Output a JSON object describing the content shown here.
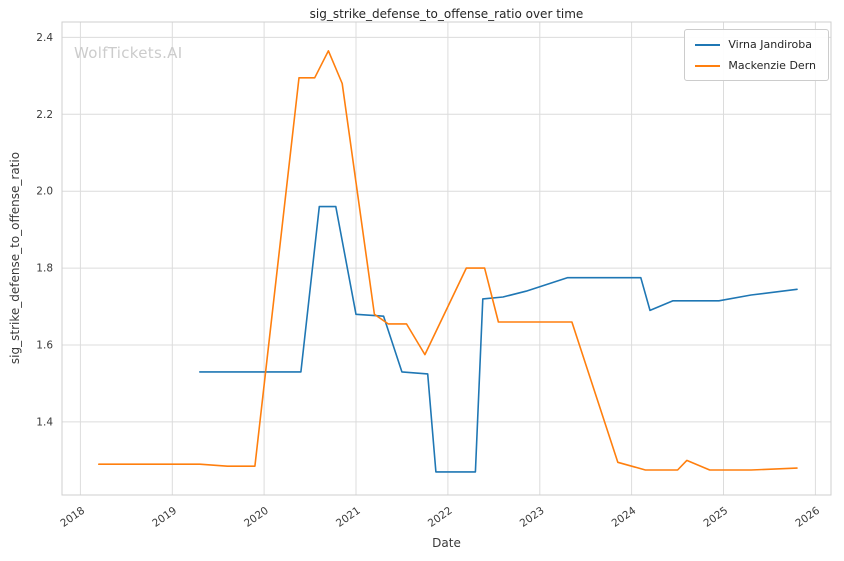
{
  "watermark": "WolfTickets.AI",
  "chart_data": {
    "type": "line",
    "title": "sig_strike_defense_to_offense_ratio over time",
    "xlabel": "Date",
    "ylabel": "sig_strike_defense_to_offense_ratio",
    "xlim": [
      2017.8,
      2026.17
    ],
    "ylim": [
      1.21,
      2.44
    ],
    "xticks": [
      2018,
      2019,
      2020,
      2021,
      2022,
      2023,
      2024,
      2025,
      2026
    ],
    "yticks": [
      1.4,
      1.6,
      1.8,
      2.0,
      2.2,
      2.4
    ],
    "grid": true,
    "legend_position": "upper right",
    "series": [
      {
        "name": "Virna Jandiroba",
        "color": "#1f77b4",
        "points": [
          [
            2019.3,
            1.53
          ],
          [
            2020.4,
            1.53
          ],
          [
            2020.6,
            1.96
          ],
          [
            2020.78,
            1.96
          ],
          [
            2021.0,
            1.68
          ],
          [
            2021.3,
            1.675
          ],
          [
            2021.5,
            1.53
          ],
          [
            2021.78,
            1.525
          ],
          [
            2021.87,
            1.27
          ],
          [
            2022.3,
            1.27
          ],
          [
            2022.38,
            1.72
          ],
          [
            2022.6,
            1.725
          ],
          [
            2022.85,
            1.74
          ],
          [
            2023.3,
            1.775
          ],
          [
            2023.75,
            1.775
          ],
          [
            2024.1,
            1.775
          ],
          [
            2024.2,
            1.69
          ],
          [
            2024.45,
            1.715
          ],
          [
            2024.95,
            1.715
          ],
          [
            2025.3,
            1.73
          ],
          [
            2025.8,
            1.745
          ]
        ]
      },
      {
        "name": "Mackenzie Dern",
        "color": "#ff7f0e",
        "points": [
          [
            2018.2,
            1.29
          ],
          [
            2018.8,
            1.29
          ],
          [
            2019.3,
            1.29
          ],
          [
            2019.6,
            1.285
          ],
          [
            2019.9,
            1.285
          ],
          [
            2020.38,
            2.295
          ],
          [
            2020.55,
            2.295
          ],
          [
            2020.7,
            2.365
          ],
          [
            2020.85,
            2.28
          ],
          [
            2021.2,
            1.68
          ],
          [
            2021.35,
            1.655
          ],
          [
            2021.55,
            1.655
          ],
          [
            2021.75,
            1.575
          ],
          [
            2022.2,
            1.8
          ],
          [
            2022.4,
            1.8
          ],
          [
            2022.55,
            1.66
          ],
          [
            2023.0,
            1.66
          ],
          [
            2023.35,
            1.66
          ],
          [
            2023.85,
            1.295
          ],
          [
            2024.15,
            1.275
          ],
          [
            2024.5,
            1.275
          ],
          [
            2024.6,
            1.3
          ],
          [
            2024.85,
            1.275
          ],
          [
            2025.3,
            1.275
          ],
          [
            2025.8,
            1.28
          ]
        ]
      }
    ]
  }
}
